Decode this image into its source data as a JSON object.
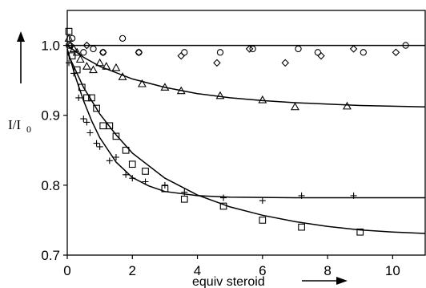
{
  "chart_data": {
    "type": "scatter",
    "title": "",
    "xlabel": "equiv steroid",
    "ylabel": "I/I",
    "ylabel_subscript": "0",
    "xlim": [
      0,
      11
    ],
    "ylim": [
      0.7,
      1.05
    ],
    "xticks": [
      "0",
      "2",
      "4",
      "6",
      "8",
      "10"
    ],
    "yticks": [
      "0.7",
      "0.8",
      "0.9",
      "1.0"
    ],
    "reference_line_y": 1.0,
    "grid": false,
    "legend": "none",
    "series": [
      {
        "marker": "circle",
        "points": [
          [
            0.05,
            1.0
          ],
          [
            0.15,
            1.01
          ],
          [
            0.5,
            0.99
          ],
          [
            0.8,
            0.995
          ],
          [
            1.1,
            0.99
          ],
          [
            1.7,
            1.01
          ],
          [
            2.2,
            0.99
          ],
          [
            3.6,
            0.99
          ],
          [
            4.7,
            0.99
          ],
          [
            5.7,
            0.995
          ],
          [
            7.1,
            0.995
          ],
          [
            7.7,
            0.99
          ],
          [
            9.1,
            0.99
          ],
          [
            10.4,
            1.0
          ]
        ],
        "fit": [
          [
            0,
            1.0
          ],
          [
            11,
            1.0
          ]
        ]
      },
      {
        "marker": "diamond",
        "points": [
          [
            0.1,
            1.0
          ],
          [
            0.6,
            1.0
          ],
          [
            1.1,
            0.99
          ],
          [
            2.2,
            0.99
          ],
          [
            3.5,
            0.985
          ],
          [
            4.6,
            0.975
          ],
          [
            5.6,
            0.995
          ],
          [
            6.7,
            0.975
          ],
          [
            7.8,
            0.985
          ],
          [
            8.8,
            0.995
          ],
          [
            10.1,
            0.99
          ]
        ],
        "fit": []
      },
      {
        "marker": "triangle",
        "points": [
          [
            0.05,
            1.01
          ],
          [
            0.2,
            0.995
          ],
          [
            0.3,
            0.99
          ],
          [
            0.4,
            0.98
          ],
          [
            0.6,
            0.97
          ],
          [
            0.8,
            0.965
          ],
          [
            1.0,
            0.975
          ],
          [
            1.2,
            0.97
          ],
          [
            1.5,
            0.968
          ],
          [
            1.7,
            0.955
          ],
          [
            2.3,
            0.945
          ],
          [
            3.0,
            0.94
          ],
          [
            3.5,
            0.935
          ],
          [
            4.7,
            0.928
          ],
          [
            6.0,
            0.922
          ],
          [
            7.0,
            0.912
          ],
          [
            8.6,
            0.913
          ]
        ],
        "fit": [
          [
            0,
            1.0
          ],
          [
            0.5,
            0.983
          ],
          [
            1,
            0.97
          ],
          [
            2,
            0.952
          ],
          [
            3,
            0.94
          ],
          [
            4,
            0.931
          ],
          [
            5,
            0.925
          ],
          [
            6,
            0.921
          ],
          [
            7,
            0.918
          ],
          [
            8,
            0.916
          ],
          [
            9,
            0.914
          ],
          [
            10,
            0.913
          ],
          [
            11,
            0.912
          ]
        ]
      },
      {
        "marker": "square",
        "points": [
          [
            0.05,
            1.02
          ],
          [
            0.15,
            0.985
          ],
          [
            0.3,
            0.965
          ],
          [
            0.45,
            0.94
          ],
          [
            0.6,
            0.925
          ],
          [
            0.75,
            0.925
          ],
          [
            0.9,
            0.91
          ],
          [
            1.1,
            0.885
          ],
          [
            1.3,
            0.885
          ],
          [
            1.5,
            0.87
          ],
          [
            1.8,
            0.85
          ],
          [
            2.0,
            0.83
          ],
          [
            2.4,
            0.82
          ],
          [
            3.0,
            0.795
          ],
          [
            3.6,
            0.78
          ],
          [
            4.8,
            0.77
          ],
          [
            6.0,
            0.75
          ],
          [
            7.2,
            0.74
          ],
          [
            9.0,
            0.733
          ]
        ],
        "fit": [
          [
            0,
            0.99
          ],
          [
            0.5,
            0.94
          ],
          [
            1,
            0.902
          ],
          [
            1.5,
            0.872
          ],
          [
            2,
            0.846
          ],
          [
            3,
            0.81
          ],
          [
            4,
            0.786
          ],
          [
            5,
            0.769
          ],
          [
            6,
            0.757
          ],
          [
            7,
            0.748
          ],
          [
            8,
            0.741
          ],
          [
            9,
            0.736
          ],
          [
            10,
            0.733
          ],
          [
            11,
            0.731
          ]
        ]
      },
      {
        "marker": "plus",
        "points": [
          [
            0.05,
            0.975
          ],
          [
            0.2,
            0.96
          ],
          [
            0.35,
            0.925
          ],
          [
            0.5,
            0.895
          ],
          [
            0.6,
            0.89
          ],
          [
            0.7,
            0.875
          ],
          [
            0.9,
            0.86
          ],
          [
            1.0,
            0.855
          ],
          [
            1.3,
            0.835
          ],
          [
            1.5,
            0.84
          ],
          [
            1.8,
            0.815
          ],
          [
            2.0,
            0.81
          ],
          [
            2.4,
            0.805
          ],
          [
            3.0,
            0.8
          ],
          [
            3.6,
            0.79
          ],
          [
            4.8,
            0.782
          ],
          [
            6.0,
            0.778
          ],
          [
            7.2,
            0.785
          ],
          [
            8.8,
            0.785
          ]
        ],
        "fit": [
          [
            0,
            0.995
          ],
          [
            0.25,
            0.955
          ],
          [
            0.5,
            0.921
          ],
          [
            0.75,
            0.892
          ],
          [
            1,
            0.868
          ],
          [
            1.5,
            0.833
          ],
          [
            2,
            0.811
          ],
          [
            2.5,
            0.799
          ],
          [
            3,
            0.791
          ],
          [
            4,
            0.785
          ],
          [
            5,
            0.783
          ],
          [
            7,
            0.782
          ],
          [
            11,
            0.782
          ]
        ]
      }
    ]
  }
}
